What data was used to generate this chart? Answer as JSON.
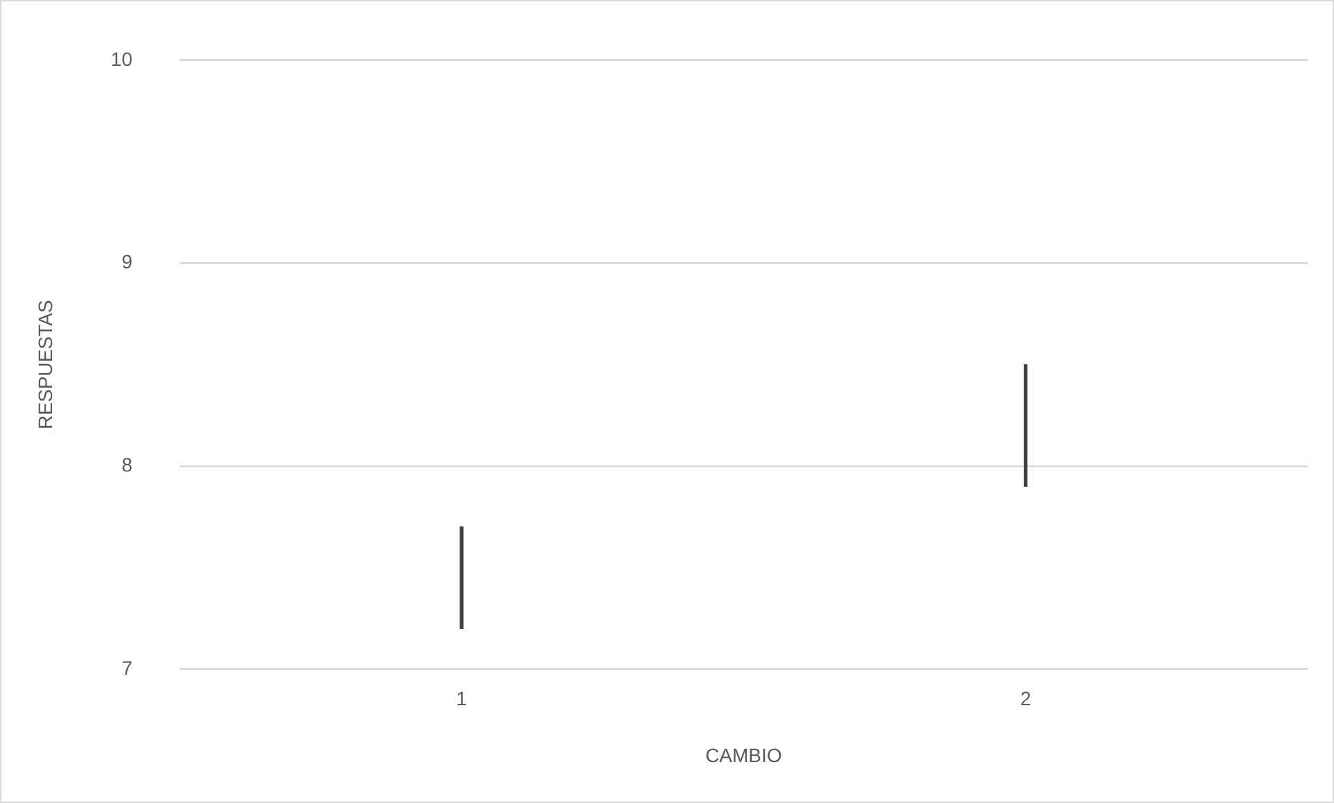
{
  "chart_data": {
    "type": "bar",
    "xlabel": "CAMBIO",
    "ylabel": "RESPUESTAS",
    "categories": [
      "1",
      "2"
    ],
    "series": [
      {
        "color": "#404040",
        "values": [
          0.5,
          0.6
        ],
        "base": [
          7.2,
          7.9
        ]
      }
    ],
    "ylim": [
      7,
      10
    ],
    "yticks": [
      7,
      8,
      9,
      10
    ],
    "grid": "y",
    "legend": false
  }
}
